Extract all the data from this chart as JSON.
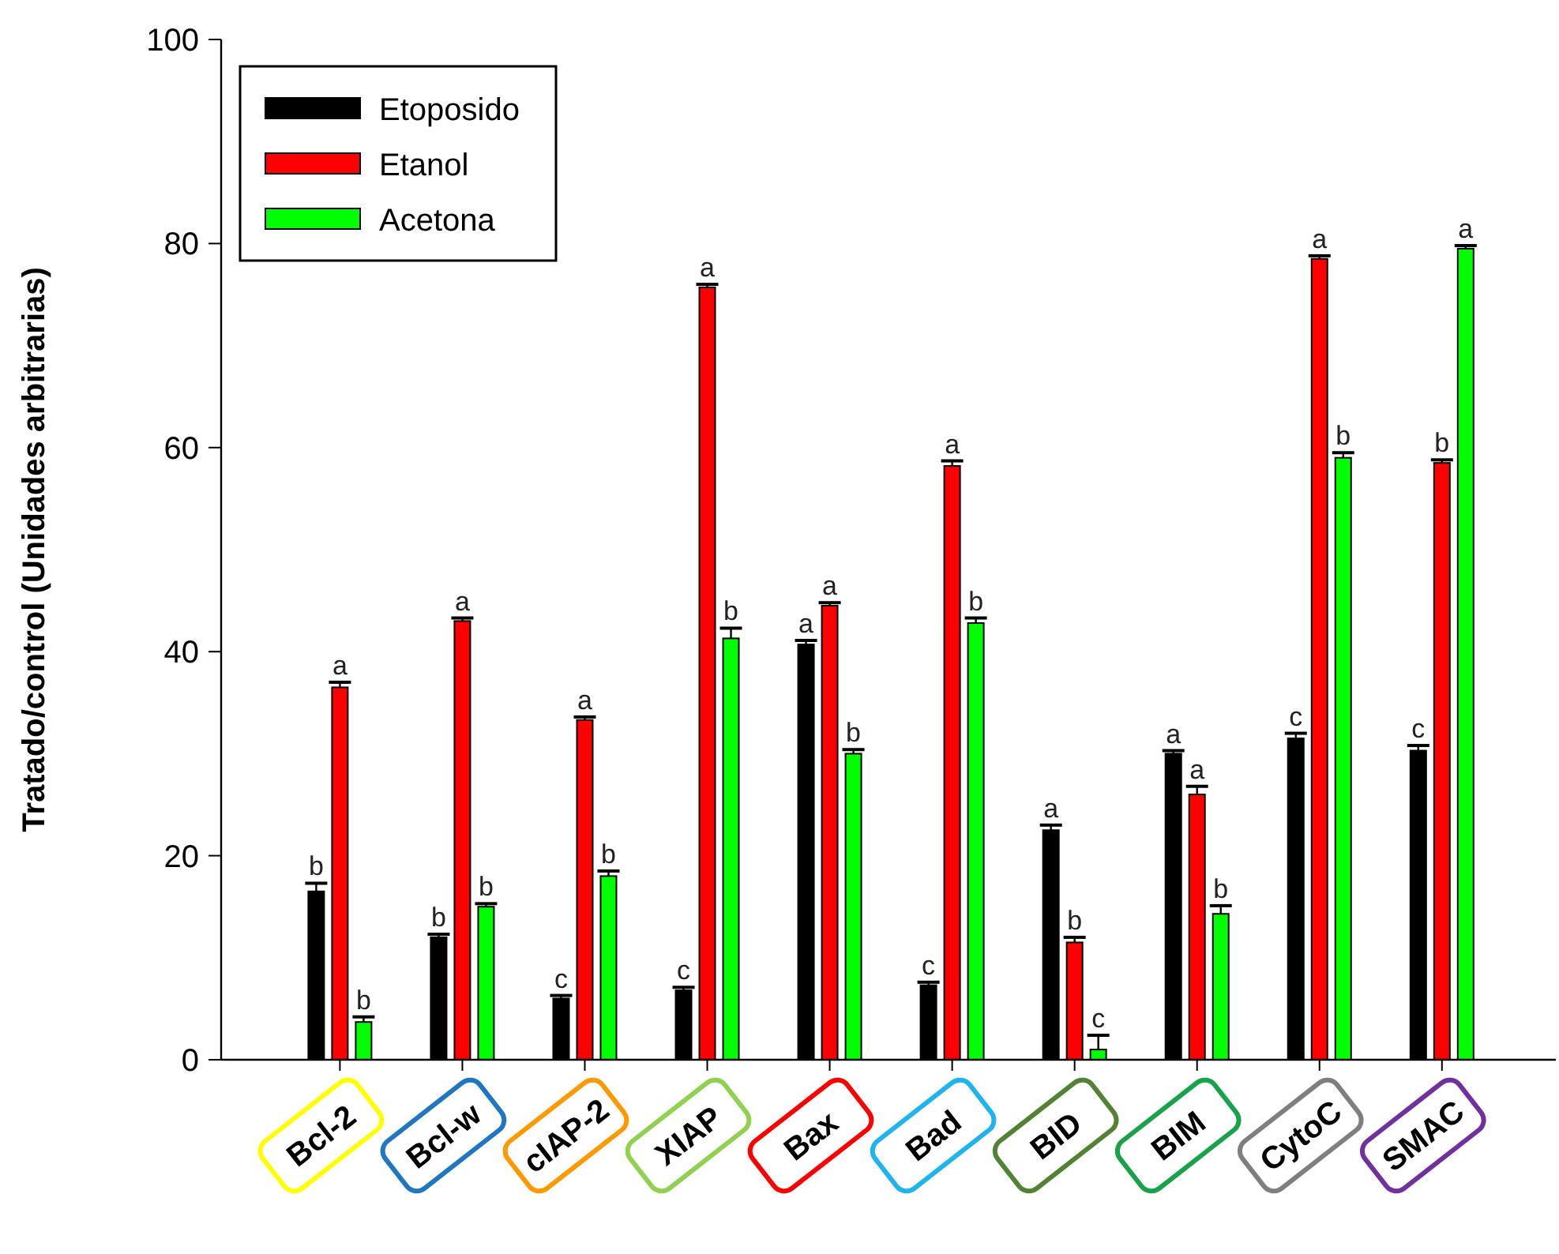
{
  "chart_data": {
    "type": "bar",
    "ylabel": "Tratado/control (Unidades arbitrarias)",
    "categories": [
      "Bcl-2",
      "Bcl-w",
      "cIAP-2",
      "XIAP",
      "Bax",
      "Bad",
      "BID",
      "BIM",
      "CytoC",
      "SMAC"
    ],
    "series": [
      {
        "name": "Etoposido",
        "color": "#000000",
        "values": [
          16.5,
          12,
          6,
          6.8,
          40.7,
          7.3,
          22.5,
          30,
          31.5,
          30.3
        ],
        "errors": [
          0.8,
          0.3,
          0.3,
          0.3,
          0.4,
          0.3,
          0.5,
          0.3,
          0.5,
          0.5
        ],
        "value_labels": [
          "b",
          "b",
          "c",
          "c",
          "a",
          "c",
          "a",
          "a",
          "c",
          "c"
        ]
      },
      {
        "name": "Etanol",
        "color": "#ff0000",
        "values": [
          36.5,
          43,
          33.3,
          75.7,
          44.5,
          58.2,
          11.5,
          26,
          78.5,
          58.5
        ],
        "errors": [
          0.5,
          0.3,
          0.3,
          0.3,
          0.3,
          0.5,
          0.5,
          0.8,
          0.3,
          0.3
        ],
        "value_labels": [
          "a",
          "a",
          "a",
          "a",
          "a",
          "a",
          "b",
          "a",
          "a",
          "b"
        ]
      },
      {
        "name": "Acetona",
        "color": "#00ff00",
        "values": [
          3.7,
          15,
          18,
          41.3,
          30,
          42.8,
          1,
          14.3,
          59,
          79.5
        ],
        "errors": [
          0.5,
          0.3,
          0.5,
          1,
          0.4,
          0.5,
          1.4,
          0.8,
          0.5,
          0.3
        ],
        "value_labels": [
          "b",
          "b",
          "b",
          "b",
          "b",
          "b",
          "c",
          "b",
          "b",
          "a"
        ]
      }
    ],
    "ylim": [
      0,
      100
    ],
    "yticks": [
      0,
      20,
      40,
      60,
      80,
      100
    ],
    "legend": "top left"
  }
}
